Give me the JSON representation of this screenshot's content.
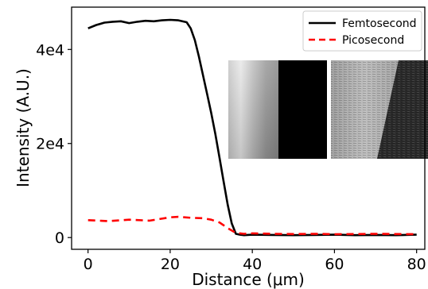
{
  "chart_data": {
    "type": "line",
    "title": "",
    "xlabel": "Distance (μm)",
    "ylabel": "Intensity (A.U.)",
    "xlim": [
      -4,
      82
    ],
    "ylim": [
      -2500,
      49000
    ],
    "x_ticks": [
      0,
      20,
      40,
      60,
      80
    ],
    "x_tick_labels": [
      "0",
      "20",
      "40",
      "60",
      "80"
    ],
    "y_ticks": [
      0,
      20000,
      40000
    ],
    "y_tick_labels": [
      "0",
      "2e4",
      "4e4"
    ],
    "grid": false,
    "legend_position": "top-right",
    "series": [
      {
        "name": "Femtosecond",
        "color": "#000000",
        "line_style": "solid",
        "x": [
          0,
          2,
          4,
          6,
          8,
          10,
          12,
          14,
          16,
          18,
          20,
          22,
          24,
          25,
          26,
          27,
          28,
          29,
          30,
          31,
          32,
          33,
          34,
          35,
          36,
          37,
          38,
          40,
          45,
          50,
          55,
          60,
          65,
          70,
          75,
          80
        ],
        "values": [
          44500,
          45200,
          45700,
          45900,
          46000,
          45600,
          45900,
          46100,
          46000,
          46200,
          46300,
          46200,
          45800,
          44500,
          42000,
          38500,
          34500,
          30500,
          26500,
          22000,
          17000,
          12000,
          7000,
          3000,
          800,
          600,
          500,
          600,
          550,
          500,
          550,
          600,
          500,
          550,
          500,
          600
        ]
      },
      {
        "name": "Picosecond",
        "color": "#ff0000",
        "line_style": "dashed",
        "x": [
          0,
          5,
          10,
          15,
          20,
          22,
          25,
          28,
          30,
          32,
          34,
          36,
          38,
          40,
          45,
          50,
          55,
          60,
          65,
          70,
          75,
          80
        ],
        "values": [
          3700,
          3500,
          3800,
          3600,
          4300,
          4400,
          4200,
          4100,
          3800,
          3200,
          2000,
          1000,
          800,
          900,
          800,
          750,
          800,
          700,
          750,
          800,
          750,
          700
        ]
      }
    ],
    "inset_images": [
      {
        "name": "femtosecond-edge-image",
        "colors": {
          "bright": "#e8e8e8",
          "dark": "#000000"
        }
      },
      {
        "name": "picosecond-edge-image",
        "colors": {
          "bright": "#bdbdbd",
          "dark": "#2a2a2a"
        }
      }
    ]
  }
}
